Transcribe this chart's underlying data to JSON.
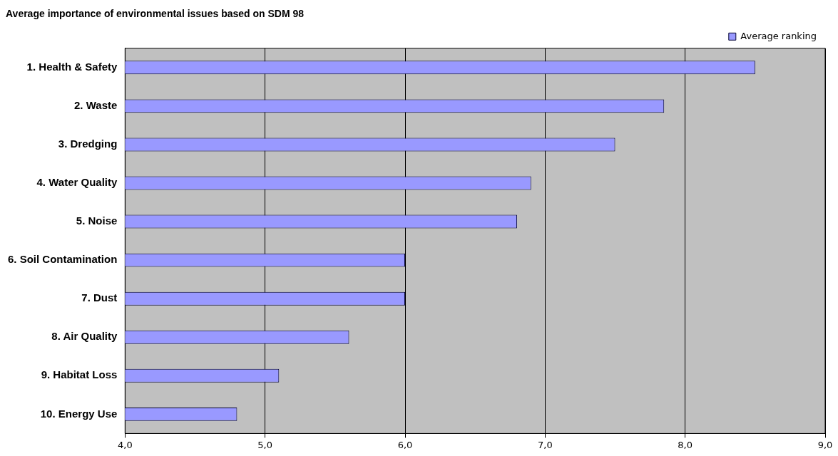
{
  "chart_data": {
    "type": "bar",
    "orientation": "horizontal",
    "title": "Average importance of environmental issues based on SDM 98",
    "categories": [
      "1. Health & Safety",
      "2. Waste",
      "3. Dredging",
      "4. Water Quality",
      "5. Noise",
      "6. Soil Contamination",
      "7. Dust",
      "8. Air Quality",
      "9. Habitat Loss",
      "10. Energy Use"
    ],
    "series": [
      {
        "name": "Average ranking",
        "color": "#9999ff",
        "values": [
          8.5,
          7.85,
          7.5,
          6.9,
          6.8,
          6.0,
          6.0,
          5.6,
          5.1,
          4.8
        ]
      }
    ],
    "xlim": [
      4,
      9
    ],
    "xticks": [
      {
        "value": 4,
        "label": "4,0"
      },
      {
        "value": 5,
        "label": "5,0"
      },
      {
        "value": 6,
        "label": "6,0"
      },
      {
        "value": 7,
        "label": "7,0"
      },
      {
        "value": 8,
        "label": "8,0"
      },
      {
        "value": 9,
        "label": "9,0"
      }
    ],
    "grid": "x",
    "legend": "top right"
  }
}
